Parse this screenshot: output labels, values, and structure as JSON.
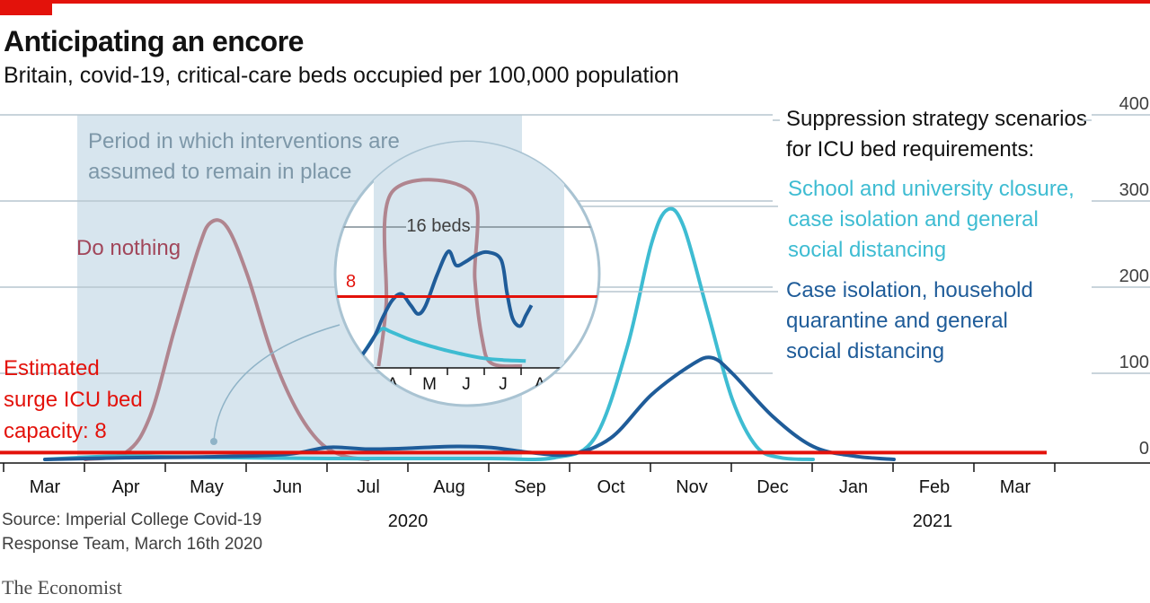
{
  "header": {
    "title": "Anticipating an encore",
    "subtitle": "Britain, covid-19, critical-care beds occupied per 100,000 population"
  },
  "source": {
    "line1": "Source: Imperial College Covid-19",
    "line2": "Response Team, March 16th 2020"
  },
  "brand": "The Economist",
  "colors": {
    "accent": "#e3120b",
    "do_nothing": "#b0858f",
    "school_closure": "#3ebcd2",
    "case_isolation": "#1f5c99",
    "shade": "#d7e5ee",
    "grid": "#b7c6cf"
  },
  "chart_data": {
    "type": "line",
    "title": "Anticipating an encore",
    "subtitle": "Britain, covid-19, critical-care beds occupied per 100,000 population",
    "ylim": [
      0,
      400
    ],
    "y_ticks": [
      0,
      100,
      200,
      300,
      400
    ],
    "y_position": "right",
    "grid": true,
    "x_months": [
      "Mar",
      "Apr",
      "May",
      "Jun",
      "Jul",
      "Aug",
      "Sep",
      "Oct",
      "Nov",
      "Dec",
      "Jan",
      "Feb",
      "Mar"
    ],
    "x_years": [
      "2020",
      "2021"
    ],
    "shaded_period": {
      "label": "Period in which interventions are assumed to remain in place",
      "start_month_index": 0.4,
      "end_month_index": 5.9
    },
    "capacity_line": {
      "label": "Estimated surge ICU bed capacity: 8",
      "value": 8
    },
    "legend_title": "Suppression strategy scenarios for ICU bed requirements:",
    "series": [
      {
        "name": "Do nothing",
        "key": "do_nothing",
        "points": [
          [
            0.5,
            0
          ],
          [
            1.0,
            8
          ],
          [
            1.3,
            50
          ],
          [
            1.6,
            150
          ],
          [
            1.9,
            245
          ],
          [
            2.05,
            275
          ],
          [
            2.25,
            270
          ],
          [
            2.5,
            215
          ],
          [
            2.8,
            125
          ],
          [
            3.1,
            60
          ],
          [
            3.4,
            20
          ],
          [
            3.7,
            4
          ],
          [
            4.0,
            0
          ]
        ]
      },
      {
        "name": "School and university closure, case isolation and general social distancing",
        "key": "school_closure",
        "points": [
          [
            0.0,
            0
          ],
          [
            0.6,
            3
          ],
          [
            1.0,
            4
          ],
          [
            1.5,
            3
          ],
          [
            2.5,
            2
          ],
          [
            3.5,
            1
          ],
          [
            4.5,
            1
          ],
          [
            5.5,
            1
          ],
          [
            6.3,
            2
          ],
          [
            6.8,
            25
          ],
          [
            7.2,
            130
          ],
          [
            7.5,
            250
          ],
          [
            7.7,
            290
          ],
          [
            7.9,
            270
          ],
          [
            8.2,
            170
          ],
          [
            8.5,
            70
          ],
          [
            8.8,
            15
          ],
          [
            9.1,
            2
          ],
          [
            9.5,
            0
          ]
        ]
      },
      {
        "name": "Case isolation, household quarantine and general social distancing",
        "key": "case_isolation",
        "points": [
          [
            0.0,
            0
          ],
          [
            1.0,
            2
          ],
          [
            2.0,
            3
          ],
          [
            3.0,
            6
          ],
          [
            3.5,
            14
          ],
          [
            4.0,
            12
          ],
          [
            4.5,
            13
          ],
          [
            5.0,
            15
          ],
          [
            5.5,
            14
          ],
          [
            6.0,
            8
          ],
          [
            6.5,
            6
          ],
          [
            7.0,
            25
          ],
          [
            7.5,
            75
          ],
          [
            8.0,
            110
          ],
          [
            8.25,
            118
          ],
          [
            8.5,
            100
          ],
          [
            9.0,
            50
          ],
          [
            9.5,
            15
          ],
          [
            10.0,
            4
          ],
          [
            10.5,
            0
          ]
        ]
      }
    ],
    "inset": {
      "x_labels": [
        "A",
        "M",
        "J",
        "J",
        "A"
      ],
      "ylim": [
        0,
        20
      ],
      "reference": {
        "label": "16 beds",
        "value": 16
      },
      "capacity": {
        "label": "8",
        "value": 8
      },
      "do_nothing_points": [
        [
          0.7,
          0
        ],
        [
          0.9,
          7
        ],
        [
          1.05,
          20
        ],
        [
          3.15,
          20
        ],
        [
          3.25,
          10
        ],
        [
          3.45,
          3
        ],
        [
          3.7,
          0.3
        ],
        [
          4.5,
          0
        ]
      ],
      "school_closure_points": [
        [
          0.0,
          0
        ],
        [
          0.3,
          1.5
        ],
        [
          0.6,
          3.5
        ],
        [
          0.8,
          4.3
        ],
        [
          1.0,
          4.0
        ],
        [
          1.5,
          3.1
        ],
        [
          2.0,
          2.4
        ],
        [
          2.5,
          1.8
        ],
        [
          3.0,
          1.3
        ],
        [
          3.5,
          0.9
        ],
        [
          4.0,
          0.7
        ],
        [
          4.6,
          0.6
        ]
      ],
      "case_isolation_points": [
        [
          0.0,
          0
        ],
        [
          0.3,
          1.5
        ],
        [
          0.6,
          3.5
        ],
        [
          0.8,
          5.5
        ],
        [
          1.05,
          7.5
        ],
        [
          1.3,
          8.3
        ],
        [
          1.55,
          7.0
        ],
        [
          1.75,
          6.0
        ],
        [
          1.95,
          7.0
        ],
        [
          2.25,
          10.5
        ],
        [
          2.55,
          13.2
        ],
        [
          2.75,
          11.6
        ],
        [
          3.0,
          12.0
        ],
        [
          3.3,
          12.8
        ],
        [
          3.6,
          13.1
        ],
        [
          3.95,
          12.2
        ],
        [
          4.1,
          8.5
        ],
        [
          4.25,
          5.5
        ],
        [
          4.45,
          4.6
        ],
        [
          4.6,
          5.8
        ],
        [
          4.75,
          7.0
        ]
      ]
    }
  }
}
